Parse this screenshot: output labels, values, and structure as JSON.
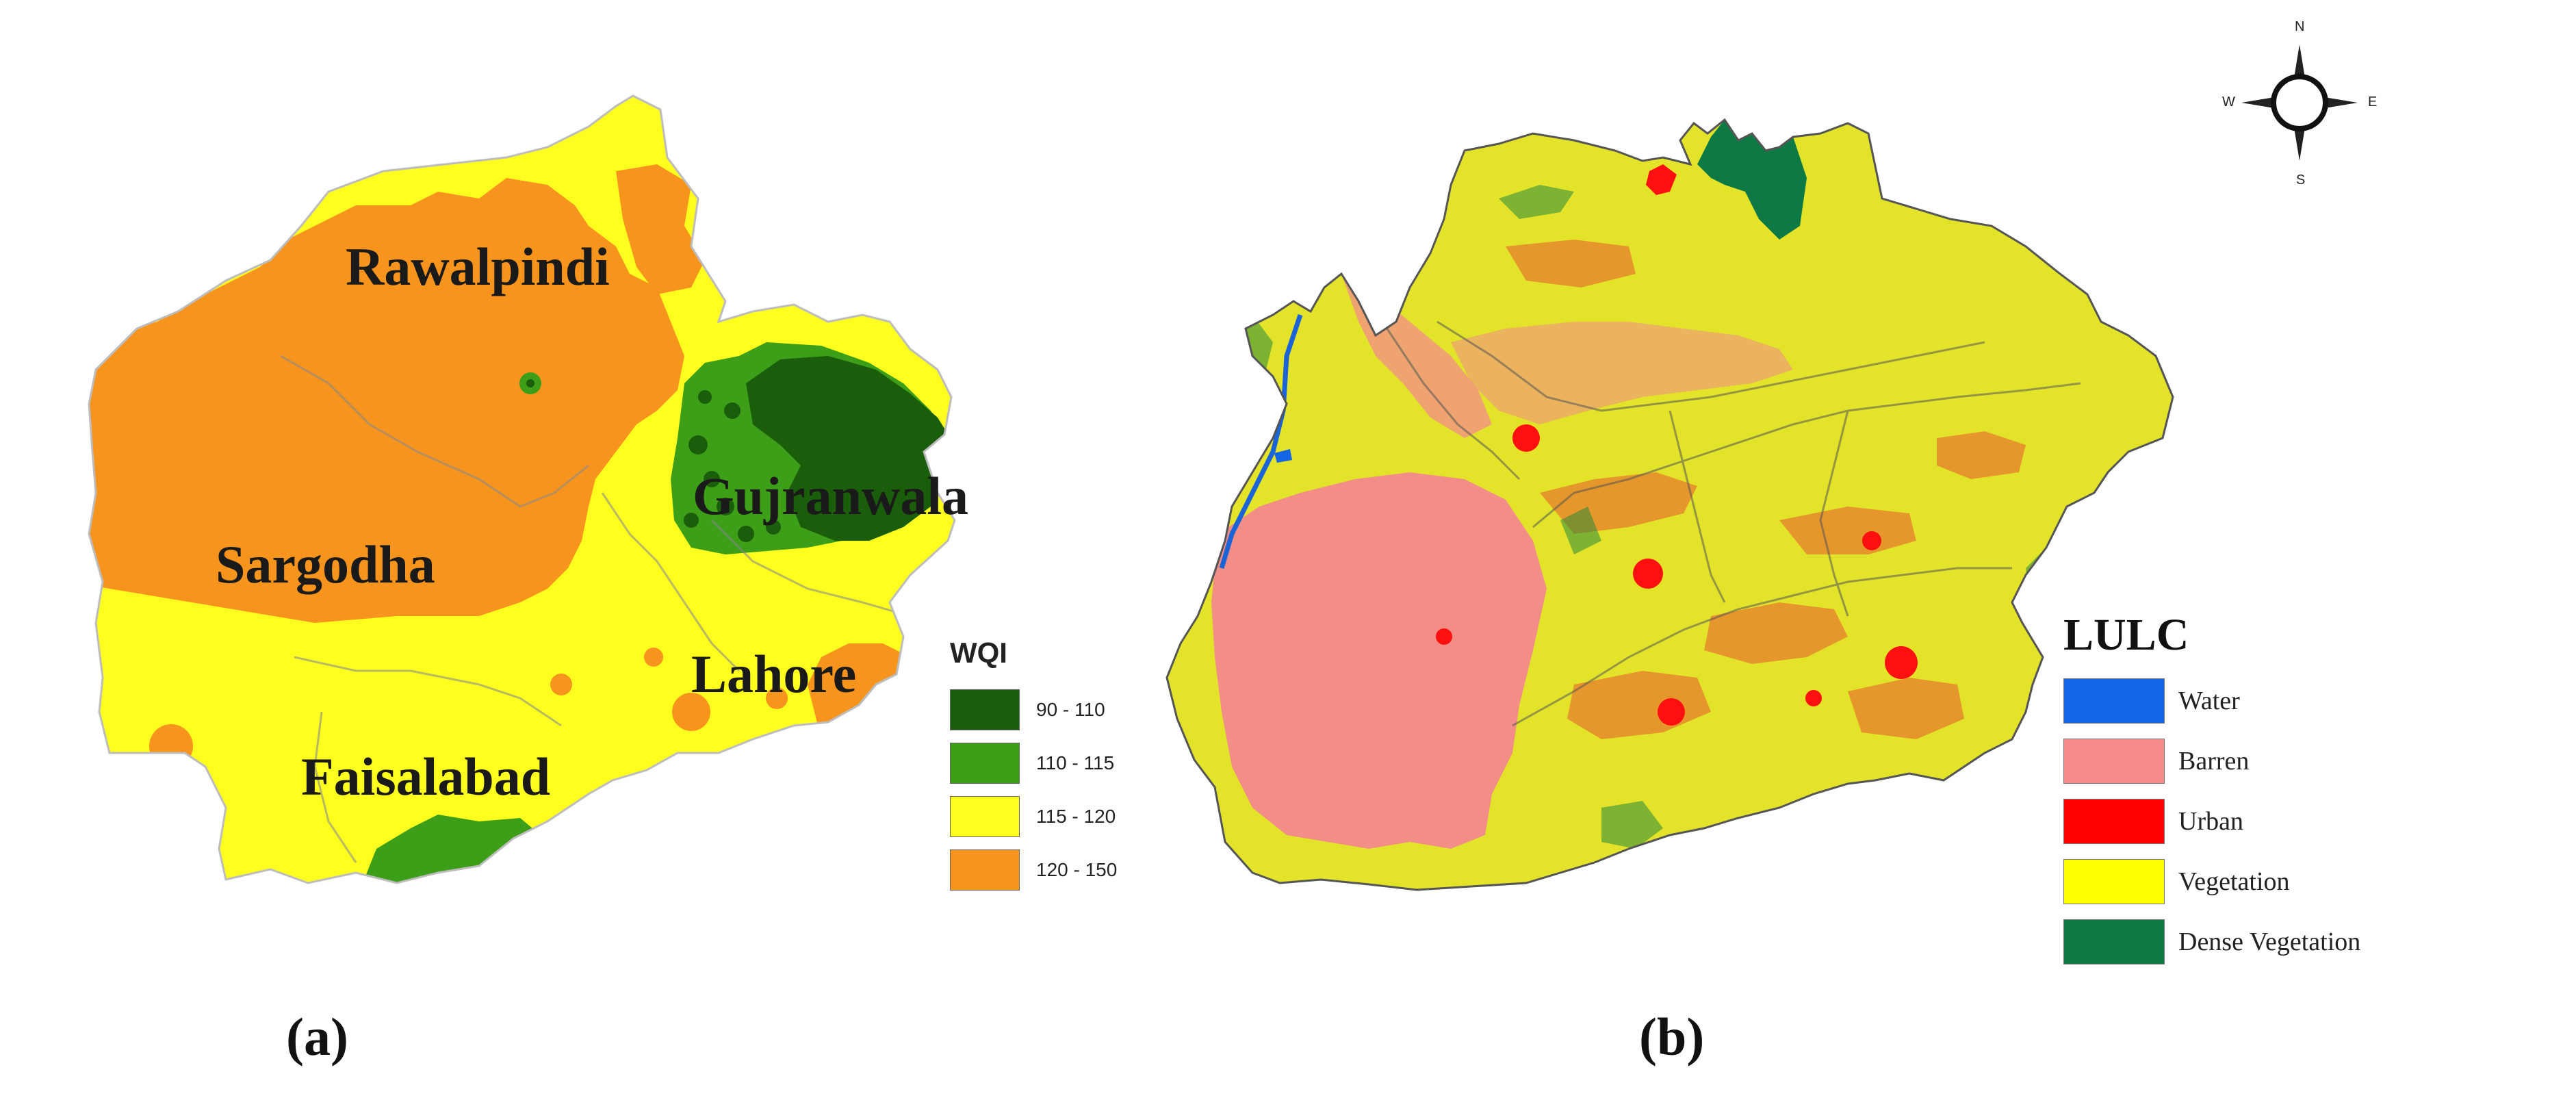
{
  "panel_a": {
    "caption": "(a)",
    "regions": [
      {
        "name": "Rawalpindi",
        "wqi_class": "120 - 150"
      },
      {
        "name": "Sargodha",
        "wqi_class": "120 - 150"
      },
      {
        "name": "Gujranwala",
        "wqi_class": "90 - 110"
      },
      {
        "name": "Lahore",
        "wqi_class": "115 - 120"
      },
      {
        "name": "Faisalabad",
        "wqi_class": "115 - 120"
      }
    ],
    "legend": {
      "title": "WQI",
      "items": [
        {
          "label": "90 - 110",
          "color": "#1a5e0b"
        },
        {
          "label": "110 - 115",
          "color": "#3d9e17"
        },
        {
          "label": "115 - 120",
          "color": "#ffff1f"
        },
        {
          "label": "120 - 150",
          "color": "#f7941d"
        }
      ]
    }
  },
  "panel_b": {
    "caption": "(b)",
    "legend": {
      "title": "LULC",
      "items": [
        {
          "label": "Water",
          "color": "#1464e6"
        },
        {
          "label": "Barren",
          "color": "#f58a8a"
        },
        {
          "label": "Urban",
          "color": "#ff0000"
        },
        {
          "label": "Vegetation",
          "color": "#ffff00"
        },
        {
          "label": "Dense Vegetation",
          "color": "#0d7a45"
        }
      ]
    },
    "compass": {
      "n": "N",
      "s": "S",
      "e": "E",
      "w": "W"
    }
  }
}
